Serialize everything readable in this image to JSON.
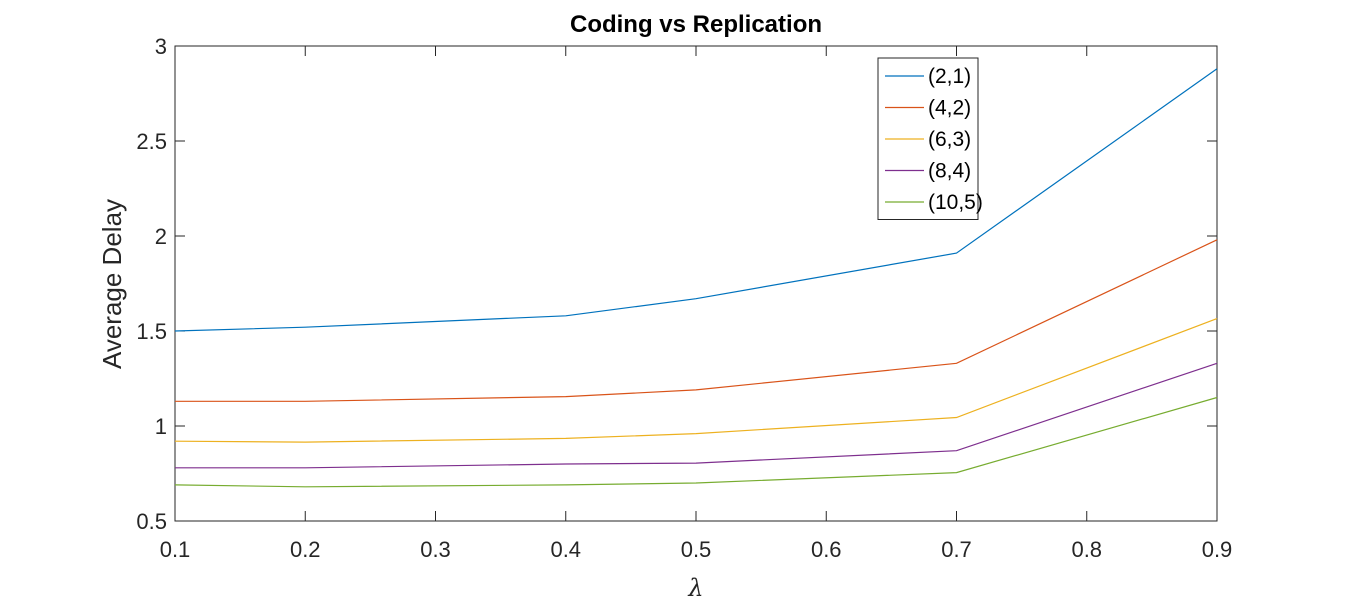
{
  "chart_data": {
    "type": "line",
    "title": "Coding vs Replication",
    "xlabel": "λ",
    "ylabel": "Average Delay",
    "xlim": [
      0.1,
      0.9
    ],
    "ylim": [
      0.5,
      3
    ],
    "xticks": [
      "0.1",
      "0.2",
      "0.3",
      "0.4",
      "0.5",
      "0.6",
      "0.7",
      "0.8",
      "0.9"
    ],
    "yticks": [
      "0.5",
      "1",
      "1.5",
      "2",
      "2.5",
      "3"
    ],
    "grid": false,
    "legend_position": "top-right",
    "x": [
      0.1,
      0.2,
      0.4,
      0.5,
      0.7,
      0.9
    ],
    "series": [
      {
        "name": "(2,1)",
        "color": "#0072BD",
        "values": [
          1.5,
          1.52,
          1.58,
          1.67,
          1.91,
          2.88
        ]
      },
      {
        "name": "(4,2)",
        "color": "#D95319",
        "values": [
          1.13,
          1.13,
          1.155,
          1.19,
          1.33,
          1.98
        ]
      },
      {
        "name": "(6,3)",
        "color": "#EDB120",
        "values": [
          0.92,
          0.915,
          0.935,
          0.96,
          1.045,
          1.565
        ]
      },
      {
        "name": "(8,4)",
        "color": "#7E2F8E",
        "values": [
          0.78,
          0.78,
          0.8,
          0.805,
          0.87,
          1.33
        ]
      },
      {
        "name": "(10,5)",
        "color": "#77AC30",
        "values": [
          0.69,
          0.68,
          0.69,
          0.7,
          0.755,
          1.15
        ]
      }
    ]
  }
}
